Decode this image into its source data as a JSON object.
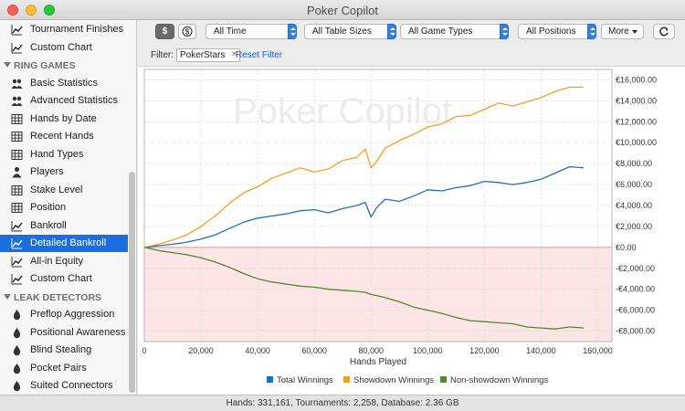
{
  "window": {
    "title": "Poker Copilot"
  },
  "sidebar": {
    "items": [
      {
        "kind": "item",
        "label": "Tournament Finishes",
        "icon": "line-chart-icon"
      },
      {
        "kind": "item",
        "label": "Custom Chart",
        "icon": "line-chart-icon"
      },
      {
        "kind": "section",
        "label": "RING GAMES"
      },
      {
        "kind": "item",
        "label": "Basic Statistics",
        "icon": "group-icon"
      },
      {
        "kind": "item",
        "label": "Advanced Statistics",
        "icon": "group-icon"
      },
      {
        "kind": "item",
        "label": "Hands by Date",
        "icon": "table-icon"
      },
      {
        "kind": "item",
        "label": "Recent Hands",
        "icon": "table-icon"
      },
      {
        "kind": "item",
        "label": "Hand Types",
        "icon": "table-icon"
      },
      {
        "kind": "item",
        "label": "Players",
        "icon": "person-icon"
      },
      {
        "kind": "item",
        "label": "Stake Level",
        "icon": "table-icon"
      },
      {
        "kind": "item",
        "label": "Position",
        "icon": "table-icon"
      },
      {
        "kind": "item",
        "label": "Bankroll",
        "icon": "line-chart-icon"
      },
      {
        "kind": "item",
        "label": "Detailed Bankroll",
        "icon": "line-chart-icon",
        "selected": true
      },
      {
        "kind": "item",
        "label": "All-in Equity",
        "icon": "line-chart-icon"
      },
      {
        "kind": "item",
        "label": "Custom Chart",
        "icon": "line-chart-icon"
      },
      {
        "kind": "section",
        "label": "LEAK DETECTORS"
      },
      {
        "kind": "item",
        "label": "Preflop Aggression",
        "icon": "drop-icon"
      },
      {
        "kind": "item",
        "label": "Positional Awareness",
        "icon": "drop-icon"
      },
      {
        "kind": "item",
        "label": "Blind Stealing",
        "icon": "drop-icon"
      },
      {
        "kind": "item",
        "label": "Pocket Pairs",
        "icon": "drop-icon"
      },
      {
        "kind": "item",
        "label": "Suited Connectors",
        "icon": "drop-icon"
      }
    ]
  },
  "toolbar": {
    "currency_label": "$",
    "big_blind_label": "$",
    "time_filter": "All Time",
    "table_size_filter": "All Table Sizes",
    "game_type_filter": "All Game Types",
    "position_filter": "All Positions",
    "more_label": "More",
    "refresh_icon": "refresh-icon"
  },
  "filter": {
    "label": "Filter:",
    "chip": "PokerStars",
    "chip_remove": "×",
    "reset_label": "Reset Filter"
  },
  "chart_data": {
    "type": "line",
    "watermark": "Poker Copilot",
    "xlabel": "Hands Played",
    "ylabel": "",
    "xlim": [
      0,
      165000
    ],
    "ylim": [
      -9000,
      17000
    ],
    "x_ticks": [
      0,
      20000,
      40000,
      60000,
      80000,
      100000,
      120000,
      140000,
      160000
    ],
    "x_tick_labels": [
      "0",
      "20,000",
      "40,000",
      "60,000",
      "80,000",
      "100,000",
      "120,000",
      "140,000",
      "160,000"
    ],
    "y_ticks": [
      -8000,
      -6000,
      -4000,
      -2000,
      0,
      2000,
      4000,
      6000,
      8000,
      10000,
      12000,
      14000,
      16000
    ],
    "y_tick_labels": [
      "-€8,000.00",
      "-€6,000.00",
      "-€4,000.00",
      "-€2,000.00",
      "€0.00",
      "€2,000.00",
      "€4,000.00",
      "€6,000.00",
      "€8,000.00",
      "€10,000.00",
      "€12,000.00",
      "€14,000.00",
      "€16,000.00"
    ],
    "grid": true,
    "legend_position": "bottom",
    "series": [
      {
        "name": "Total Winnings",
        "color": "#1f6fba",
        "x": [
          0,
          5000,
          10000,
          15000,
          20000,
          25000,
          30000,
          35000,
          40000,
          45000,
          50000,
          55000,
          60000,
          65000,
          70000,
          75000,
          78000,
          80000,
          82000,
          85000,
          90000,
          95000,
          100000,
          105000,
          110000,
          115000,
          120000,
          125000,
          130000,
          135000,
          140000,
          145000,
          150000,
          155000
        ],
        "values": [
          0,
          150,
          300,
          500,
          800,
          1200,
          1800,
          2400,
          2800,
          3000,
          3200,
          3500,
          3600,
          3300,
          3700,
          4000,
          4300,
          2900,
          3800,
          4600,
          4400,
          4900,
          5500,
          5400,
          5700,
          5900,
          6300,
          6200,
          6000,
          6200,
          6500,
          7100,
          7700,
          7600
        ]
      },
      {
        "name": "Showdown Winnings",
        "color": "#f0a020",
        "x": [
          0,
          5000,
          10000,
          15000,
          20000,
          25000,
          30000,
          35000,
          40000,
          45000,
          50000,
          55000,
          60000,
          65000,
          70000,
          75000,
          78000,
          80000,
          82000,
          85000,
          90000,
          95000,
          100000,
          105000,
          110000,
          115000,
          120000,
          125000,
          130000,
          135000,
          140000,
          145000,
          150000,
          155000
        ],
        "values": [
          0,
          300,
          700,
          1200,
          2000,
          3000,
          4200,
          5200,
          5800,
          6600,
          7100,
          7600,
          7200,
          7500,
          8300,
          8600,
          9400,
          7600,
          8200,
          9500,
          10200,
          10800,
          11500,
          11800,
          12500,
          12600,
          13200,
          13800,
          13500,
          13900,
          14300,
          14900,
          15300,
          15300
        ]
      },
      {
        "name": "Non-showdown Winnings",
        "color": "#4e8a30",
        "x": [
          0,
          5000,
          10000,
          15000,
          20000,
          25000,
          30000,
          35000,
          40000,
          45000,
          50000,
          55000,
          60000,
          65000,
          70000,
          75000,
          78000,
          80000,
          82000,
          85000,
          90000,
          95000,
          100000,
          105000,
          110000,
          115000,
          120000,
          125000,
          130000,
          135000,
          140000,
          145000,
          150000,
          155000
        ],
        "values": [
          0,
          -300,
          -500,
          -700,
          -1000,
          -1400,
          -1900,
          -2500,
          -3000,
          -3300,
          -3500,
          -3700,
          -3800,
          -4000,
          -4100,
          -4200,
          -4300,
          -4500,
          -4600,
          -4800,
          -5200,
          -5700,
          -6000,
          -6300,
          -6700,
          -7000,
          -7100,
          -7200,
          -7300,
          -7600,
          -7700,
          -7800,
          -7600,
          -7700
        ]
      }
    ]
  },
  "status": {
    "text": "Hands: 331,161,  Tournaments: 2,258,  Database: 2.36 GB"
  }
}
